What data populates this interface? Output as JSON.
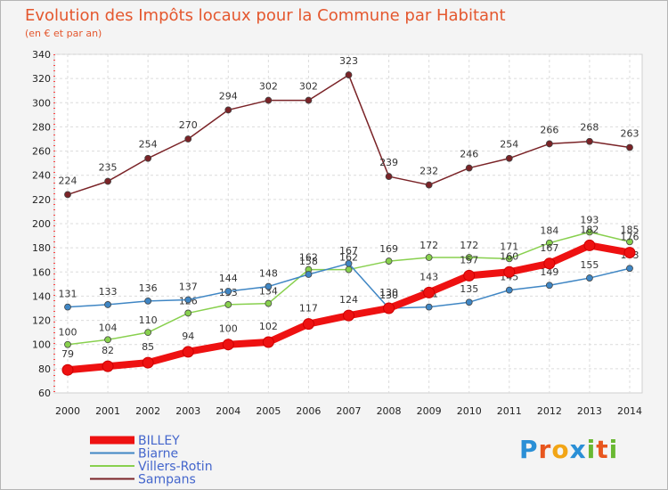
{
  "chart_data": {
    "type": "line",
    "title": "Evolution des Impôts locaux pour la Commune par Habitant",
    "subtitle": "(en € et par an)",
    "xlabel": "",
    "ylabel": "",
    "categories": [
      "2000",
      "2001",
      "2002",
      "2003",
      "2004",
      "2005",
      "2006",
      "2007",
      "2008",
      "2009",
      "2010",
      "2011",
      "2012",
      "2013",
      "2014"
    ],
    "ylim": [
      60,
      340
    ],
    "yticks": [
      60,
      80,
      100,
      120,
      140,
      160,
      180,
      200,
      220,
      240,
      260,
      280,
      300,
      320,
      340
    ],
    "grid": true,
    "legend_position": "bottom-left",
    "series": [
      {
        "name": "Sampans",
        "color": "#7a2327",
        "values": [
          224,
          235,
          254,
          270,
          294,
          302,
          302,
          323,
          239,
          232,
          246,
          254,
          266,
          268,
          263
        ],
        "labels": [
          "224",
          "235",
          "254",
          "270",
          "294",
          "302",
          "302",
          "323",
          "239",
          "232",
          "246",
          "254",
          "266",
          "268",
          "263"
        ]
      },
      {
        "name": "Villers-Rotin",
        "color": "#88d04e",
        "values": [
          100,
          104,
          110,
          126,
          133,
          134,
          162,
          162,
          169,
          172,
          172,
          171,
          184,
          193,
          185
        ],
        "labels": [
          "100",
          "104",
          "110",
          "126",
          "133",
          "134",
          "162",
          "162",
          "169",
          "172",
          "172",
          "171",
          "184",
          "193",
          "185"
        ]
      },
      {
        "name": "Biarne",
        "color": "#3f86c4",
        "values": [
          131,
          133,
          136,
          137,
          144,
          148,
          158,
          167,
          130,
          131,
          135,
          145,
          149,
          155,
          163
        ],
        "labels": [
          "131",
          "133",
          "136",
          "137",
          "144",
          "148",
          "158",
          "167",
          "130",
          "131",
          "135",
          "145",
          "149",
          "155",
          "163"
        ]
      },
      {
        "name": "BILLEY",
        "color": "#ee1111",
        "values": [
          79,
          82,
          85,
          94,
          100,
          102,
          117,
          124,
          130,
          143,
          157,
          160,
          167,
          182,
          176
        ],
        "labels": [
          "79",
          "82",
          "85",
          "94",
          "100",
          "102",
          "117",
          "124",
          "130",
          "143",
          "157",
          "160",
          "167",
          "182",
          "176"
        ]
      }
    ],
    "legend_order": [
      "BILLEY",
      "Biarne",
      "Villers-Rotin",
      "Sampans"
    ]
  },
  "brand": {
    "letters": [
      "P",
      "r",
      "o",
      "x",
      "i",
      "t",
      "i"
    ],
    "colors": [
      "#2a8fd6",
      "#e8561e",
      "#f2a516",
      "#2a8fd6",
      "#69b832",
      "#e8561e",
      "#69b832"
    ]
  }
}
